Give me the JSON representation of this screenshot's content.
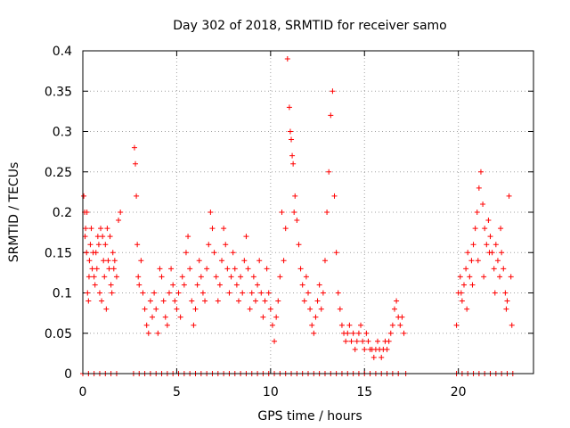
{
  "chart_data": {
    "type": "scatter",
    "title": "Day 302 of 2018, SRMTID for receiver samo",
    "xlabel": "GPS time / hours",
    "ylabel": "SRMTID / TECUs",
    "xlim": [
      0,
      24
    ],
    "ylim": [
      0,
      0.4
    ],
    "xticks": [
      0,
      5,
      10,
      15,
      20
    ],
    "yticks": [
      0,
      0.05,
      0.1,
      0.15,
      0.2,
      0.25,
      0.3,
      0.35,
      0.4
    ],
    "xtick_labels": [
      "0",
      "5",
      "10",
      "15",
      "20"
    ],
    "ytick_labels": [
      "0",
      "0.05",
      "0.1",
      "0.15",
      "0.2",
      "0.25",
      "0.3",
      "0.35",
      "0.4"
    ],
    "grid": true,
    "marker": "+",
    "color": "#ff0000",
    "series": [
      {
        "name": "SRMTID",
        "points": [
          [
            0.05,
            0.22
          ],
          [
            0.1,
            0.2
          ],
          [
            0.15,
            0.18
          ],
          [
            0.2,
            0.15
          ],
          [
            0.25,
            0.1
          ],
          [
            0.3,
            0.09
          ],
          [
            0.35,
            0.14
          ],
          [
            0.4,
            0.16
          ],
          [
            0.5,
            0.13
          ],
          [
            0.6,
            0.12
          ],
          [
            0.7,
            0.15
          ],
          [
            0.8,
            0.17
          ],
          [
            0.9,
            0.1
          ],
          [
            1.0,
            0.09
          ],
          [
            1.1,
            0.14
          ],
          [
            1.2,
            0.16
          ],
          [
            1.3,
            0.18
          ],
          [
            1.4,
            0.13
          ],
          [
            1.5,
            0.11
          ],
          [
            1.6,
            0.15
          ],
          [
            1.7,
            0.14
          ],
          [
            1.8,
            0.12
          ],
          [
            1.9,
            0.19
          ],
          [
            2.0,
            0.2
          ],
          [
            0.45,
            0.18
          ],
          [
            0.55,
            0.15
          ],
          [
            0.65,
            0.11
          ],
          [
            0.75,
            0.13
          ],
          [
            0.85,
            0.16
          ],
          [
            1.05,
            0.17
          ],
          [
            1.15,
            0.12
          ],
          [
            1.25,
            0.08
          ],
          [
            1.35,
            0.14
          ],
          [
            1.45,
            0.17
          ],
          [
            1.55,
            0.1
          ],
          [
            1.65,
            0.13
          ],
          [
            0.12,
            0.17
          ],
          [
            0.22,
            0.2
          ],
          [
            0.33,
            0.12
          ],
          [
            0.95,
            0.18
          ],
          [
            2.75,
            0.28
          ],
          [
            2.8,
            0.26
          ],
          [
            2.85,
            0.22
          ],
          [
            2.9,
            0.16
          ],
          [
            2.95,
            0.12
          ],
          [
            3.0,
            0.11
          ],
          [
            3.1,
            0.14
          ],
          [
            3.2,
            0.1
          ],
          [
            3.3,
            0.08
          ],
          [
            3.4,
            0.06
          ],
          [
            3.5,
            0.05
          ],
          [
            3.6,
            0.09
          ],
          [
            3.7,
            0.07
          ],
          [
            3.8,
            0.1
          ],
          [
            3.9,
            0.08
          ],
          [
            4.0,
            0.05
          ],
          [
            4.1,
            0.13
          ],
          [
            4.2,
            0.12
          ],
          [
            4.3,
            0.09
          ],
          [
            4.4,
            0.07
          ],
          [
            4.5,
            0.06
          ],
          [
            4.6,
            0.1
          ],
          [
            4.7,
            0.13
          ],
          [
            4.8,
            0.11
          ],
          [
            4.9,
            0.09
          ],
          [
            5.0,
            0.08
          ],
          [
            5.1,
            0.1
          ],
          [
            5.2,
            0.07
          ],
          [
            5.3,
            0.12
          ],
          [
            5.4,
            0.11
          ],
          [
            5.5,
            0.15
          ],
          [
            5.6,
            0.17
          ],
          [
            5.7,
            0.13
          ],
          [
            5.8,
            0.09
          ],
          [
            5.9,
            0.06
          ],
          [
            6.0,
            0.08
          ],
          [
            6.1,
            0.11
          ],
          [
            6.2,
            0.14
          ],
          [
            6.3,
            0.12
          ],
          [
            6.4,
            0.1
          ],
          [
            6.5,
            0.09
          ],
          [
            6.6,
            0.13
          ],
          [
            6.7,
            0.16
          ],
          [
            6.8,
            0.2
          ],
          [
            6.9,
            0.18
          ],
          [
            7.0,
            0.15
          ],
          [
            7.1,
            0.12
          ],
          [
            7.2,
            0.09
          ],
          [
            7.3,
            0.11
          ],
          [
            7.4,
            0.14
          ],
          [
            7.5,
            0.18
          ],
          [
            7.6,
            0.16
          ],
          [
            7.7,
            0.13
          ],
          [
            7.8,
            0.1
          ],
          [
            7.9,
            0.12
          ],
          [
            8.0,
            0.15
          ],
          [
            8.1,
            0.13
          ],
          [
            8.2,
            0.11
          ],
          [
            8.3,
            0.09
          ],
          [
            8.4,
            0.12
          ],
          [
            8.5,
            0.1
          ],
          [
            8.6,
            0.14
          ],
          [
            8.7,
            0.17
          ],
          [
            8.8,
            0.13
          ],
          [
            8.9,
            0.08
          ],
          [
            9.0,
            0.1
          ],
          [
            9.1,
            0.12
          ],
          [
            9.2,
            0.09
          ],
          [
            9.3,
            0.11
          ],
          [
            9.4,
            0.14
          ],
          [
            9.5,
            0.1
          ],
          [
            9.6,
            0.07
          ],
          [
            9.7,
            0.09
          ],
          [
            9.8,
            0.13
          ],
          [
            9.9,
            0.1
          ],
          [
            10.0,
            0.08
          ],
          [
            10.1,
            0.06
          ],
          [
            10.2,
            0.04
          ],
          [
            10.3,
            0.07
          ],
          [
            10.4,
            0.09
          ],
          [
            10.5,
            0.12
          ],
          [
            10.6,
            0.2
          ],
          [
            10.7,
            0.14
          ],
          [
            10.8,
            0.18
          ],
          [
            10.9,
            0.39
          ],
          [
            11.0,
            0.33
          ],
          [
            11.1,
            0.29
          ],
          [
            11.2,
            0.26
          ],
          [
            11.3,
            0.22
          ],
          [
            11.4,
            0.19
          ],
          [
            11.5,
            0.16
          ],
          [
            11.6,
            0.13
          ],
          [
            11.7,
            0.11
          ],
          [
            11.8,
            0.09
          ],
          [
            11.9,
            0.12
          ],
          [
            12.0,
            0.1
          ],
          [
            12.1,
            0.08
          ],
          [
            12.2,
            0.06
          ],
          [
            12.3,
            0.05
          ],
          [
            12.4,
            0.07
          ],
          [
            12.5,
            0.09
          ],
          [
            12.6,
            0.11
          ],
          [
            12.7,
            0.08
          ],
          [
            12.8,
            0.1
          ],
          [
            12.9,
            0.14
          ],
          [
            13.0,
            0.2
          ],
          [
            13.1,
            0.25
          ],
          [
            13.2,
            0.32
          ],
          [
            13.3,
            0.35
          ],
          [
            13.4,
            0.22
          ],
          [
            13.5,
            0.15
          ],
          [
            13.6,
            0.1
          ],
          [
            13.7,
            0.08
          ],
          [
            13.8,
            0.06
          ],
          [
            13.9,
            0.05
          ],
          [
            14.0,
            0.04
          ],
          [
            14.1,
            0.05
          ],
          [
            14.2,
            0.06
          ],
          [
            14.3,
            0.04
          ],
          [
            14.4,
            0.05
          ],
          [
            14.5,
            0.03
          ],
          [
            14.6,
            0.04
          ],
          [
            14.7,
            0.05
          ],
          [
            14.8,
            0.06
          ],
          [
            14.9,
            0.04
          ],
          [
            15.0,
            0.03
          ],
          [
            15.1,
            0.05
          ],
          [
            15.2,
            0.04
          ],
          [
            15.3,
            0.03
          ],
          [
            15.4,
            0.03
          ],
          [
            15.5,
            0.02
          ],
          [
            15.6,
            0.03
          ],
          [
            15.7,
            0.04
          ],
          [
            15.8,
            0.03
          ],
          [
            15.9,
            0.02
          ],
          [
            16.0,
            0.03
          ],
          [
            16.1,
            0.04
          ],
          [
            16.2,
            0.03
          ],
          [
            16.3,
            0.04
          ],
          [
            16.4,
            0.05
          ],
          [
            16.5,
            0.06
          ],
          [
            16.6,
            0.08
          ],
          [
            16.7,
            0.09
          ],
          [
            16.8,
            0.07
          ],
          [
            16.9,
            0.06
          ],
          [
            17.0,
            0.07
          ],
          [
            17.1,
            0.05
          ],
          [
            11.05,
            0.3
          ],
          [
            11.15,
            0.27
          ],
          [
            11.25,
            0.2
          ],
          [
            19.9,
            0.06
          ],
          [
            20.0,
            0.1
          ],
          [
            20.1,
            0.12
          ],
          [
            20.2,
            0.09
          ],
          [
            20.3,
            0.11
          ],
          [
            20.4,
            0.13
          ],
          [
            20.5,
            0.15
          ],
          [
            20.6,
            0.12
          ],
          [
            20.7,
            0.14
          ],
          [
            20.8,
            0.16
          ],
          [
            20.9,
            0.18
          ],
          [
            21.0,
            0.2
          ],
          [
            21.1,
            0.23
          ],
          [
            21.2,
            0.25
          ],
          [
            21.3,
            0.21
          ],
          [
            21.4,
            0.18
          ],
          [
            21.5,
            0.16
          ],
          [
            21.6,
            0.19
          ],
          [
            21.7,
            0.17
          ],
          [
            21.8,
            0.15
          ],
          [
            21.9,
            0.13
          ],
          [
            22.0,
            0.16
          ],
          [
            22.1,
            0.14
          ],
          [
            22.2,
            0.12
          ],
          [
            22.3,
            0.15
          ],
          [
            22.4,
            0.13
          ],
          [
            22.5,
            0.1
          ],
          [
            22.6,
            0.09
          ],
          [
            22.7,
            0.22
          ],
          [
            22.8,
            0.12
          ],
          [
            20.15,
            0.1
          ],
          [
            20.45,
            0.08
          ],
          [
            20.75,
            0.11
          ],
          [
            21.05,
            0.14
          ],
          [
            21.35,
            0.12
          ],
          [
            21.65,
            0.15
          ],
          [
            21.95,
            0.1
          ],
          [
            22.25,
            0.18
          ],
          [
            22.55,
            0.08
          ],
          [
            22.85,
            0.06
          ],
          [
            0.0,
            0.0
          ],
          [
            0.3,
            0.0
          ],
          [
            0.6,
            0.0
          ],
          [
            0.9,
            0.0
          ],
          [
            1.2,
            0.0
          ],
          [
            1.5,
            0.0
          ],
          [
            1.8,
            0.0
          ],
          [
            2.7,
            0.0
          ],
          [
            3.0,
            0.0
          ],
          [
            3.3,
            0.0
          ],
          [
            3.6,
            0.0
          ],
          [
            3.9,
            0.0
          ],
          [
            4.2,
            0.0
          ],
          [
            4.5,
            0.0
          ],
          [
            4.8,
            0.0
          ],
          [
            5.1,
            0.0
          ],
          [
            5.4,
            0.0
          ],
          [
            5.7,
            0.0
          ],
          [
            6.0,
            0.0
          ],
          [
            6.3,
            0.0
          ],
          [
            6.6,
            0.0
          ],
          [
            6.9,
            0.0
          ],
          [
            7.2,
            0.0
          ],
          [
            7.5,
            0.0
          ],
          [
            7.8,
            0.0
          ],
          [
            8.1,
            0.0
          ],
          [
            8.4,
            0.0
          ],
          [
            8.7,
            0.0
          ],
          [
            9.0,
            0.0
          ],
          [
            9.3,
            0.0
          ],
          [
            9.6,
            0.0
          ],
          [
            9.9,
            0.0
          ],
          [
            10.2,
            0.0
          ],
          [
            10.5,
            0.0
          ],
          [
            10.8,
            0.0
          ],
          [
            11.1,
            0.0
          ],
          [
            11.4,
            0.0
          ],
          [
            11.7,
            0.0
          ],
          [
            12.0,
            0.0
          ],
          [
            12.3,
            0.0
          ],
          [
            12.6,
            0.0
          ],
          [
            12.9,
            0.0
          ],
          [
            13.2,
            0.0
          ],
          [
            13.5,
            0.0
          ],
          [
            13.8,
            0.0
          ],
          [
            14.1,
            0.0
          ],
          [
            14.4,
            0.0
          ],
          [
            14.7,
            0.0
          ],
          [
            15.0,
            0.0
          ],
          [
            15.3,
            0.0
          ],
          [
            15.6,
            0.0
          ],
          [
            15.9,
            0.0
          ],
          [
            16.2,
            0.0
          ],
          [
            16.5,
            0.0
          ],
          [
            16.8,
            0.0
          ],
          [
            17.2,
            0.0
          ],
          [
            19.9,
            0.0
          ],
          [
            20.2,
            0.0
          ],
          [
            20.5,
            0.0
          ],
          [
            20.8,
            0.0
          ],
          [
            21.1,
            0.0
          ],
          [
            21.4,
            0.0
          ],
          [
            21.7,
            0.0
          ],
          [
            22.0,
            0.0
          ],
          [
            22.3,
            0.0
          ],
          [
            22.6,
            0.0
          ],
          [
            22.9,
            0.0
          ]
        ]
      }
    ]
  }
}
